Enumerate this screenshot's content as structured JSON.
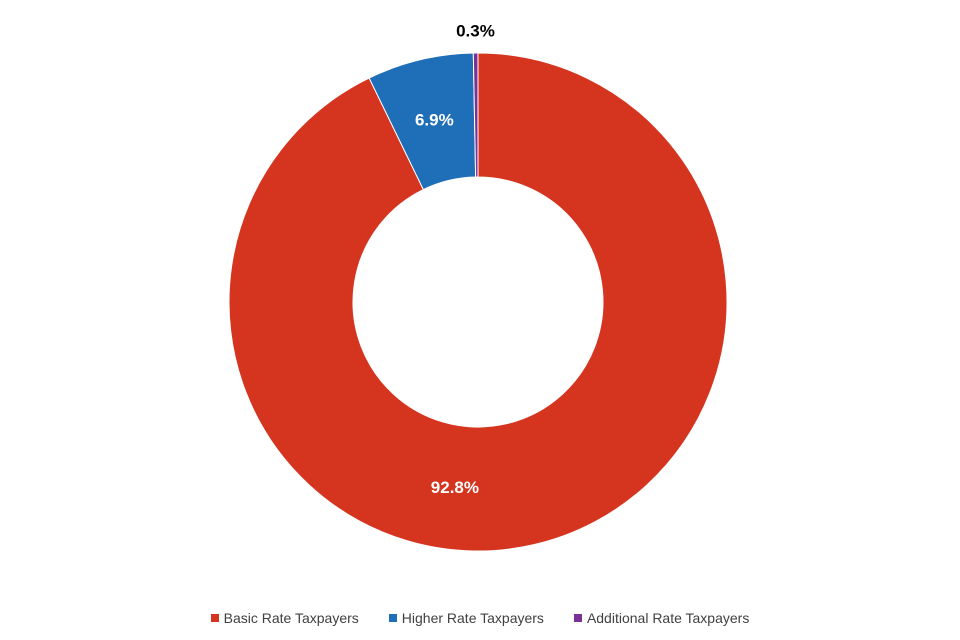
{
  "chart_data": {
    "type": "pie",
    "variant": "donut",
    "categories": [
      "Basic Rate Taxpayers",
      "Higher Rate Taxpayers",
      "Additional Rate Taxpayers"
    ],
    "values": [
      92.8,
      6.9,
      0.3
    ],
    "data_labels": [
      "92.8%",
      "6.9%",
      "0.3%"
    ],
    "colors": [
      "#d5341f",
      "#1f6fb8",
      "#7b3294"
    ],
    "label_colors": [
      "#ffffff",
      "#ffffff",
      "#000000"
    ],
    "legend_position": "bottom",
    "title": "",
    "start": "top, clockwise"
  }
}
